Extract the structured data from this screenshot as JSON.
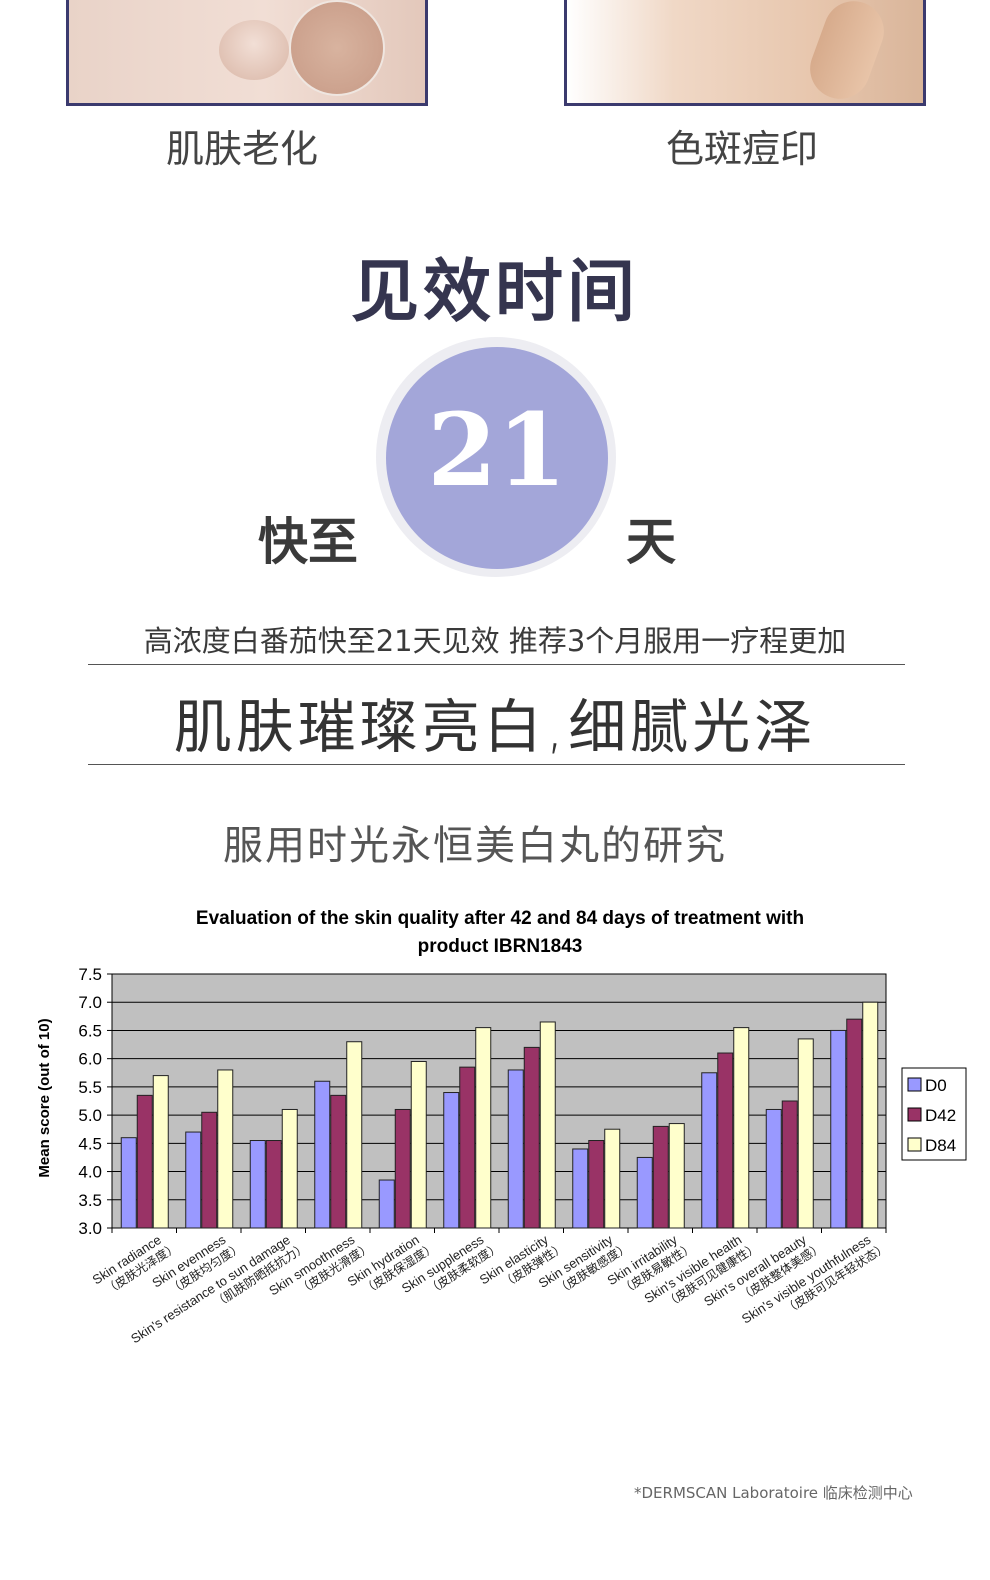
{
  "captions": {
    "left": "肌肤老化",
    "right": "色斑痘印"
  },
  "section_title": "见效时间",
  "badge": {
    "prefix": "快至",
    "number": "21",
    "suffix": "天"
  },
  "description": "高浓度白番茄快至21天见效 推荐3个月服用一疗程更加",
  "slogan": "肌肤璀璨亮白,细腻光泽",
  "study_title": "服用时光永恒美白丸的研究",
  "footnote": "*DERMSCAN Laboratoire 临床检测中心",
  "colors": {
    "d0": "#9999ff",
    "d42": "#993366",
    "d84": "#ffffcc",
    "plot_bg": "#c0c0c0",
    "title_dark": "#35354f",
    "badge": "#a3a6d9"
  },
  "chart_data": {
    "type": "bar",
    "title": "Evaluation of the skin quality after 42 and 84 days of treatment with product IBRN1843",
    "title_lines": [
      "Evaluation of the skin quality after 42 and 84 days of treatment with",
      "product IBRN1843"
    ],
    "ylabel": "Mean score (out of 10)",
    "xlabel": "",
    "ylim": [
      3.0,
      7.5
    ],
    "yticks": [
      "3.0",
      "3.5",
      "4.0",
      "4.5",
      "5.0",
      "5.5",
      "6.0",
      "6.5",
      "7.0",
      "7.5"
    ],
    "grid": true,
    "legend_position": "right",
    "categories": [
      "Skin radiance（皮肤光泽度）",
      "Skin evenness（皮肤均匀度）",
      "Skin's resistance to sun damage（肌肤防晒抵抗力）",
      "Skin smoothness（皮肤光滑度）",
      "Skin hydration（皮肤保湿度）",
      "Skin suppleness（皮肤柔软度）",
      "Skin elasticity（皮肤弹性）",
      "Skin sensitivity（皮肤敏感度）",
      "Skin irritability（皮肤易敏性）",
      "Skin's visible health（皮肤可见健康性）",
      "Skin's overall beauty（皮肤整体美感）",
      "Skin's visible youthfulness（皮肤可见年轻状态）"
    ],
    "category_lines": [
      [
        "Skin radiance",
        "（皮肤光泽度）"
      ],
      [
        "Skin evenness",
        "（皮肤均匀度）"
      ],
      [
        "Skin's resistance to sun damage",
        "（肌肤防晒抵抗力）"
      ],
      [
        "Skin smoothness",
        "（皮肤光滑度）"
      ],
      [
        "Skin hydration",
        "（皮肤保湿度）"
      ],
      [
        "Skin suppleness",
        "（皮肤柔软度）"
      ],
      [
        "Skin elasticity",
        "（皮肤弹性）"
      ],
      [
        "Skin sensitivity",
        "（皮肤敏感度）"
      ],
      [
        "Skin irritability",
        "（皮肤易敏性）"
      ],
      [
        "Skin's visible health",
        "（皮肤可见健康性）"
      ],
      [
        "Skin's overall beauty",
        "（皮肤整体美感）"
      ],
      [
        "Skin's visible youthfulness",
        "（皮肤可见年轻状态）"
      ]
    ],
    "series": [
      {
        "name": "D0",
        "values": [
          4.6,
          4.7,
          4.55,
          5.6,
          3.85,
          5.4,
          5.8,
          4.4,
          4.25,
          5.75,
          5.1,
          6.5
        ]
      },
      {
        "name": "D42",
        "values": [
          5.35,
          5.05,
          4.55,
          5.35,
          5.1,
          5.85,
          6.2,
          4.55,
          4.8,
          6.1,
          5.25,
          6.7
        ]
      },
      {
        "name": "D84",
        "values": [
          5.7,
          5.8,
          5.1,
          6.3,
          5.95,
          6.55,
          6.65,
          4.75,
          4.85,
          6.55,
          6.35,
          7.0
        ]
      }
    ]
  }
}
